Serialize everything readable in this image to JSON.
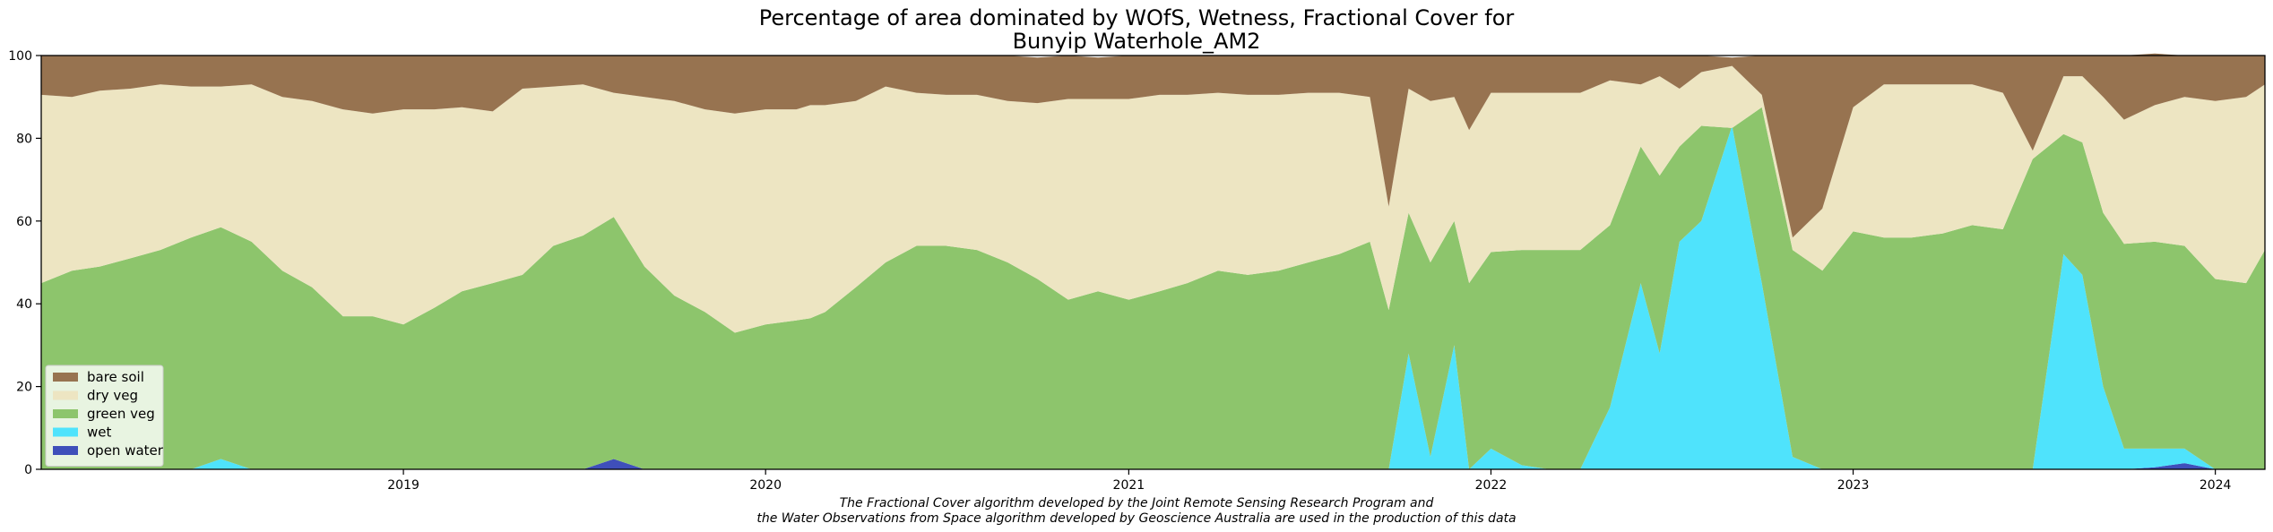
{
  "chart_data": {
    "type": "area",
    "stacked": true,
    "title": "Percentage of area dominated by WOfS, Wetness, Fractional Cover for",
    "subtitle": "Bunyip Waterhole_AM2",
    "xlabel": "",
    "ylabel": "",
    "xlim": [
      "2018-01-01",
      "2024-02-20"
    ],
    "ylim": [
      0,
      100
    ],
    "x_ticks": [
      "2019",
      "2020",
      "2021",
      "2022",
      "2023",
      "2024"
    ],
    "y_ticks": [
      "0",
      "20",
      "40",
      "60",
      "80",
      "100"
    ],
    "grid": false,
    "legend_position": "lower-left",
    "footnote_line1": "The Fractional Cover algorithm developed by the Joint Remote Sensing Research Program and",
    "footnote_line2": "the Water Observations from Space algorithm developed by Geoscience Australia are used in the production of this data",
    "x": [
      "2018-01-01",
      "2018-02-01",
      "2018-03-01",
      "2018-04-01",
      "2018-05-01",
      "2018-06-01",
      "2018-07-01",
      "2018-08-01",
      "2018-09-01",
      "2018-10-01",
      "2018-11-01",
      "2018-12-01",
      "2019-01-01",
      "2019-02-01",
      "2019-03-01",
      "2019-04-01",
      "2019-05-01",
      "2019-06-01",
      "2019-07-01",
      "2019-08-01",
      "2019-09-01",
      "2019-10-01",
      "2019-11-01",
      "2019-12-01",
      "2020-01-01",
      "2020-02-01",
      "2020-02-15",
      "2020-03-01",
      "2020-04-01",
      "2020-05-01",
      "2020-06-01",
      "2020-07-01",
      "2020-08-01",
      "2020-09-01",
      "2020-10-01",
      "2020-11-01",
      "2020-12-01",
      "2021-01-01",
      "2021-02-01",
      "2021-03-01",
      "2021-04-01",
      "2021-05-01",
      "2021-06-01",
      "2021-07-01",
      "2021-08-01",
      "2021-09-01",
      "2021-09-20",
      "2021-10-10",
      "2021-11-01",
      "2021-11-25",
      "2021-12-10",
      "2022-01-01",
      "2022-02-01",
      "2022-03-01",
      "2022-04-01",
      "2022-05-01",
      "2022-06-01",
      "2022-06-20",
      "2022-07-10",
      "2022-08-01",
      "2022-09-01",
      "2022-10-01",
      "2022-11-01",
      "2022-12-01",
      "2023-01-01",
      "2023-02-01",
      "2023-03-01",
      "2023-04-01",
      "2023-05-01",
      "2023-06-01",
      "2023-07-01",
      "2023-08-01",
      "2023-08-20",
      "2023-09-10",
      "2023-10-01",
      "2023-11-01",
      "2023-12-01",
      "2024-01-01",
      "2024-02-01",
      "2024-02-20"
    ],
    "series": [
      {
        "name": "open water",
        "color": "#3f4fba",
        "values": [
          0,
          0,
          0,
          0,
          0,
          0,
          0,
          0,
          0,
          0,
          0,
          0,
          0,
          0,
          0,
          0,
          0,
          0,
          0,
          2.5,
          0,
          0,
          0,
          0,
          0,
          0,
          0,
          0,
          0,
          0,
          0,
          0,
          0,
          0,
          0,
          0,
          0,
          0,
          0,
          0,
          0,
          0,
          0,
          0,
          0,
          0,
          0,
          0,
          0,
          0,
          0,
          0,
          0,
          0,
          0,
          0,
          0,
          0,
          0,
          0,
          0,
          0,
          0,
          0,
          0,
          0,
          0,
          0,
          0,
          0,
          0,
          0,
          0,
          0,
          0,
          0.5,
          1.5,
          0,
          0,
          0
        ]
      },
      {
        "name": "wet",
        "color": "#4fe3fc",
        "values": [
          0,
          0,
          0,
          0,
          0,
          0,
          2.5,
          0,
          0,
          0,
          0,
          0,
          0,
          0,
          0,
          0,
          0,
          0,
          0,
          0,
          0,
          0,
          0,
          0,
          0,
          0,
          0,
          0,
          0,
          0,
          0,
          0,
          0,
          0,
          0,
          0,
          0,
          0,
          0,
          0,
          0,
          0,
          0,
          0,
          0,
          0,
          0,
          28,
          3,
          30,
          0,
          5,
          1,
          0,
          0,
          15,
          45,
          28,
          55,
          60,
          83,
          45,
          3,
          0,
          0,
          0,
          0,
          0,
          0,
          0,
          0,
          52,
          47,
          20,
          5,
          4.5,
          3.5,
          0,
          0,
          0
        ]
      },
      {
        "name": "green veg",
        "color": "#8dc56c",
        "values": [
          45,
          48,
          49,
          51,
          53,
          56,
          56,
          55,
          48,
          44,
          37,
          37,
          35,
          39,
          43,
          45,
          47,
          54,
          56.5,
          58.5,
          49,
          42,
          38,
          33,
          35,
          36,
          36.5,
          38,
          44,
          50,
          54,
          54,
          53,
          50,
          46,
          41,
          43,
          41,
          43,
          45,
          48,
          47,
          48,
          50,
          52,
          55,
          38.5,
          34,
          47,
          30,
          45,
          47.5,
          52,
          53,
          53,
          44,
          33,
          43,
          23,
          23,
          -0.5,
          42.5,
          50,
          48,
          57.5,
          56,
          56,
          57,
          59,
          58,
          75,
          29,
          32,
          42,
          49.5,
          50,
          49,
          46,
          45,
          53
        ]
      },
      {
        "name": "dry veg",
        "color": "#ede5c2",
        "values": [
          45.5,
          42,
          42.5,
          41,
          40,
          36.5,
          34,
          38,
          42,
          45,
          50,
          49,
          52,
          48,
          44.5,
          41.5,
          45,
          38.5,
          36.5,
          30,
          41,
          47,
          49,
          53,
          52,
          51,
          51.5,
          50,
          45,
          42.5,
          37,
          36.5,
          37.5,
          39,
          42.5,
          48.5,
          46.5,
          48.5,
          47.5,
          45.5,
          43,
          43.5,
          42.5,
          41,
          39,
          35,
          25,
          30,
          39,
          30,
          37,
          38.5,
          38,
          38,
          38,
          35,
          15,
          24,
          14,
          13,
          15,
          3,
          3,
          15,
          30,
          37,
          37,
          36,
          34,
          33,
          2,
          14,
          16,
          28,
          30,
          33,
          36,
          43,
          45,
          40
        ]
      },
      {
        "name": "bare soil",
        "color": "#977350",
        "values": [
          9.5,
          10,
          8.5,
          8,
          7,
          7.5,
          7.5,
          7,
          10,
          11,
          13,
          14,
          13,
          13,
          12.5,
          13.5,
          8,
          7.5,
          7,
          9,
          10,
          11,
          13,
          14,
          13,
          13,
          12,
          12,
          11,
          7.5,
          9,
          9.5,
          9.5,
          11,
          11,
          10.5,
          10,
          10.5,
          9.5,
          9.5,
          9,
          9.5,
          9.5,
          9,
          9,
          10,
          36.5,
          8,
          11,
          10,
          18,
          9,
          9,
          9,
          9,
          6,
          7,
          5,
          8,
          4,
          2,
          9.5,
          44,
          37,
          12.5,
          7,
          7,
          7,
          7,
          9,
          23,
          5,
          5,
          10,
          15.5,
          12.5,
          10,
          11,
          10,
          7
        ]
      }
    ]
  }
}
